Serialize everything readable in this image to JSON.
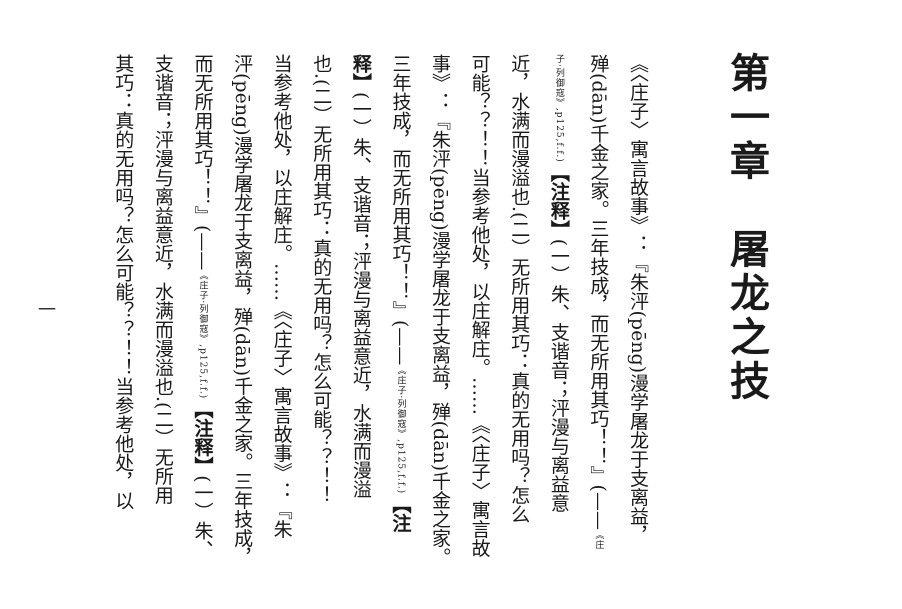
{
  "chapter": {
    "number_label": "第一章",
    "title": "屠龙之技"
  },
  "page_number": "一",
  "columns": [
    {
      "parts": [
        {
          "t": "《〈庄子〉寓言故事》：『朱泙(pēng)漫学屠龙于支离益，"
        }
      ]
    },
    {
      "parts": [
        {
          "t": "殚(dān)千金之家。三年技成，而无所用其巧！！』(——"
        },
        {
          "t": "《庄",
          "s": true
        }
      ]
    },
    {
      "parts": [
        {
          "t": "子·列御寇》,p125,f.f.)",
          "s": true
        },
        {
          "t": "【注释】",
          "b": true
        },
        {
          "t": "(一）朱、支谐音；泙漫与离益意"
        }
      ]
    },
    {
      "parts": [
        {
          "t": "近，水满而漫溢也.(二）无所用其巧：真的无用吗？怎么"
        }
      ]
    },
    {
      "parts": [
        {
          "t": "可能？？！！当参考他处，以庄解庄。……《〈庄子〉寓言故"
        }
      ]
    },
    {
      "parts": [
        {
          "t": "事》：『朱泙(pēng)漫学屠龙于支离益，殚(dān)千金之家。"
        }
      ]
    },
    {
      "parts": [
        {
          "t": "三年技成，而无所用其巧！！』(——"
        },
        {
          "t": "《庄子·列御寇》,p125,f.f.)",
          "s": true
        },
        {
          "t": "【注",
          "b": true
        }
      ]
    },
    {
      "parts": [
        {
          "t": "释】",
          "b": true
        },
        {
          "t": "(一）朱、支谐音；泙漫与离益意近，水满而漫溢"
        }
      ]
    },
    {
      "parts": [
        {
          "t": "也.(二）无所用其巧：真的无用吗？怎么可能？？！！"
        }
      ]
    },
    {
      "parts": [
        {
          "t": "当参考他处，以庄解庄。……《〈庄子〉寓言故事》：『朱"
        }
      ]
    },
    {
      "parts": [
        {
          "t": "泙(pēng)漫学屠龙于支离益，殚(dān)千金之家。三年技成，"
        }
      ]
    },
    {
      "parts": [
        {
          "t": "而无所用其巧！！』(——"
        },
        {
          "t": "《庄子·列御寇》,p125,f.f.)",
          "s": true
        },
        {
          "t": "【注释】",
          "b": true
        },
        {
          "t": "(一）朱、"
        }
      ]
    },
    {
      "parts": [
        {
          "t": "支谐音；泙漫与离益意近，水满而漫溢也.(二）无所用"
        }
      ]
    },
    {
      "parts": [
        {
          "t": "其巧：真的无用吗？怎么可能？？！！当参考他处，以"
        }
      ]
    }
  ]
}
